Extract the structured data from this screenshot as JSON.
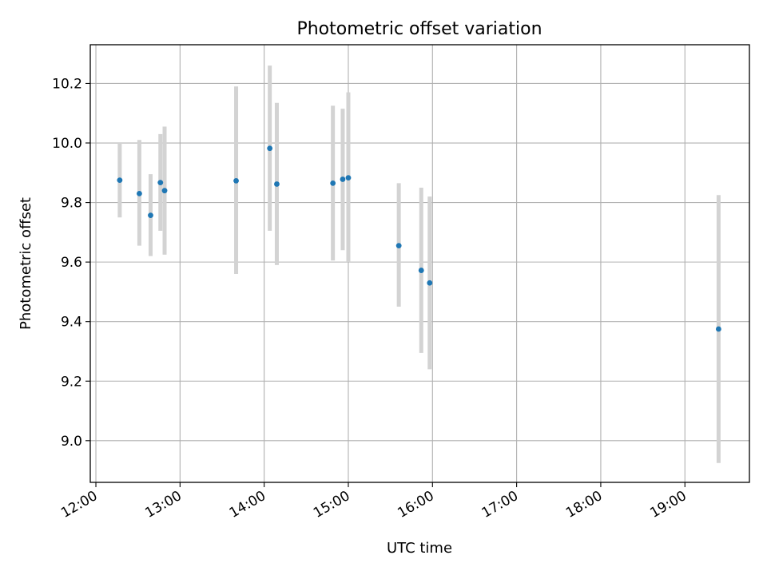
{
  "chart_data": {
    "type": "scatter",
    "title": "Photometric offset variation",
    "xlabel": "UTC time",
    "ylabel": "Photometric offset",
    "x_ticks": [
      "12:00",
      "13:00",
      "14:00",
      "15:00",
      "16:00",
      "17:00",
      "18:00",
      "19:00"
    ],
    "y_ticks": [
      9.0,
      9.2,
      9.4,
      9.6,
      9.8,
      10.0,
      10.2
    ],
    "xlim": [
      "11:56",
      "19:46"
    ],
    "ylim": [
      8.86,
      10.33
    ],
    "grid": true,
    "point_color": "#1f77b4",
    "errorbar_color": "#d3d3d3",
    "points": [
      {
        "time": "12:17",
        "value": 9.875,
        "low": 9.75,
        "high": 10.0
      },
      {
        "time": "12:31",
        "value": 9.83,
        "low": 9.655,
        "high": 10.01
      },
      {
        "time": "12:39",
        "value": 9.757,
        "low": 9.62,
        "high": 9.895
      },
      {
        "time": "12:46",
        "value": 9.867,
        "low": 9.705,
        "high": 10.03
      },
      {
        "time": "12:49",
        "value": 9.84,
        "low": 9.625,
        "high": 10.055
      },
      {
        "time": "13:40",
        "value": 9.873,
        "low": 9.56,
        "high": 10.19
      },
      {
        "time": "14:04",
        "value": 9.982,
        "low": 9.705,
        "high": 10.26
      },
      {
        "time": "14:09",
        "value": 9.862,
        "low": 9.59,
        "high": 10.135
      },
      {
        "time": "14:49",
        "value": 9.865,
        "low": 9.605,
        "high": 10.125
      },
      {
        "time": "14:56",
        "value": 9.878,
        "low": 9.64,
        "high": 10.115
      },
      {
        "time": "15:00",
        "value": 9.883,
        "low": 9.6,
        "high": 10.17
      },
      {
        "time": "15:36",
        "value": 9.655,
        "low": 9.45,
        "high": 9.865
      },
      {
        "time": "15:52",
        "value": 9.572,
        "low": 9.295,
        "high": 9.85
      },
      {
        "time": "15:58",
        "value": 9.53,
        "low": 9.24,
        "high": 9.82
      },
      {
        "time": "19:24",
        "value": 9.375,
        "low": 8.925,
        "high": 9.825
      }
    ]
  }
}
